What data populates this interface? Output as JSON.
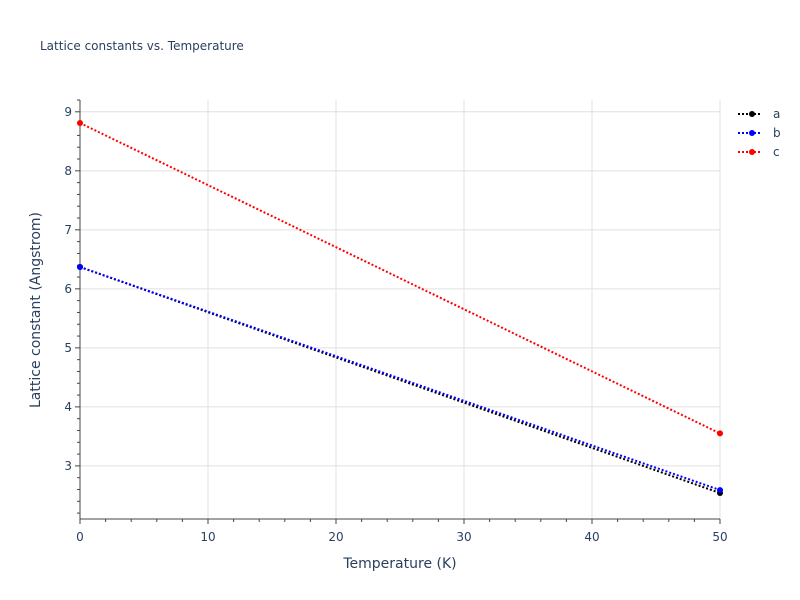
{
  "chart_data": {
    "type": "line",
    "title": "Lattice constants vs. Temperature",
    "xlabel": "Temperature (K)",
    "ylabel": "Lattice constant (Angstrom)",
    "xlim": [
      0,
      50
    ],
    "ylim": [
      2.1,
      9.2
    ],
    "x_ticks": [
      0,
      10,
      20,
      30,
      40,
      50
    ],
    "y_ticks": [
      3,
      4,
      5,
      6,
      7,
      8,
      9
    ],
    "x_tick_labels": [
      "0",
      "10",
      "20",
      "30",
      "40",
      "50"
    ],
    "y_tick_labels": [
      "3",
      "4",
      "5",
      "6",
      "7",
      "8",
      "9"
    ],
    "grid": true,
    "legend_position": "top-right",
    "line_style": "dotted",
    "markers": true,
    "series": [
      {
        "name": "a",
        "color": "#000000",
        "x": [
          0,
          50
        ],
        "y": [
          6.37,
          2.54
        ]
      },
      {
        "name": "b",
        "color": "#0000ff",
        "x": [
          0,
          50
        ],
        "y": [
          6.37,
          2.59
        ]
      },
      {
        "name": "c",
        "color": "#ff0000",
        "x": [
          0,
          50
        ],
        "y": [
          8.81,
          3.55
        ]
      }
    ]
  }
}
